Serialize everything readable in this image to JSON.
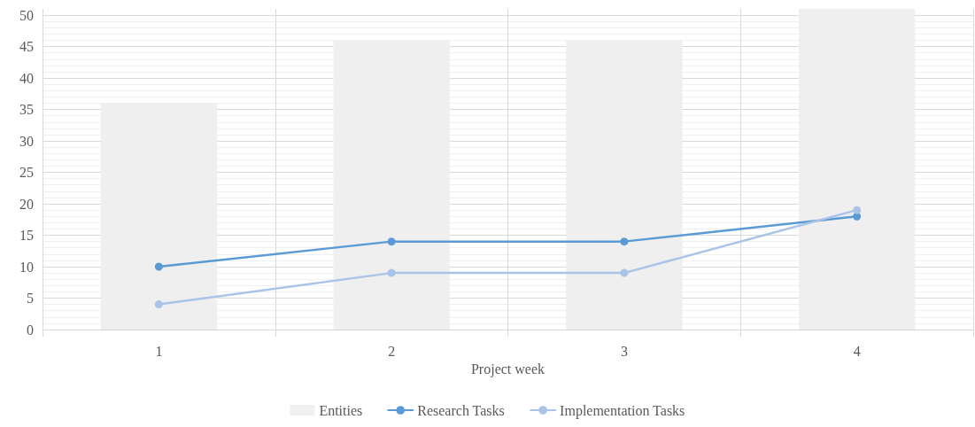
{
  "chart_data": {
    "type": "bar",
    "xlabel": "Project week",
    "categories": [
      "1",
      "2",
      "3",
      "4"
    ],
    "series": [
      {
        "name": "Entities",
        "color": "#efefef",
        "values": [
          36,
          46,
          46,
          51
        ]
      },
      {
        "name": "Research Tasks",
        "type": "line",
        "color": "#5b9bd5",
        "values": [
          10,
          14,
          14,
          18
        ]
      },
      {
        "name": "Implementation Tasks",
        "type": "line",
        "color": "#a9c4e8",
        "values": [
          4,
          9,
          9,
          19
        ]
      }
    ],
    "ylim": [
      0,
      51
    ],
    "yticks": [
      0,
      5,
      10,
      15,
      20,
      25,
      30,
      35,
      40,
      45,
      50
    ],
    "grid": true,
    "legend": "bottom",
    "marker": "circle",
    "line_style": "solid"
  }
}
